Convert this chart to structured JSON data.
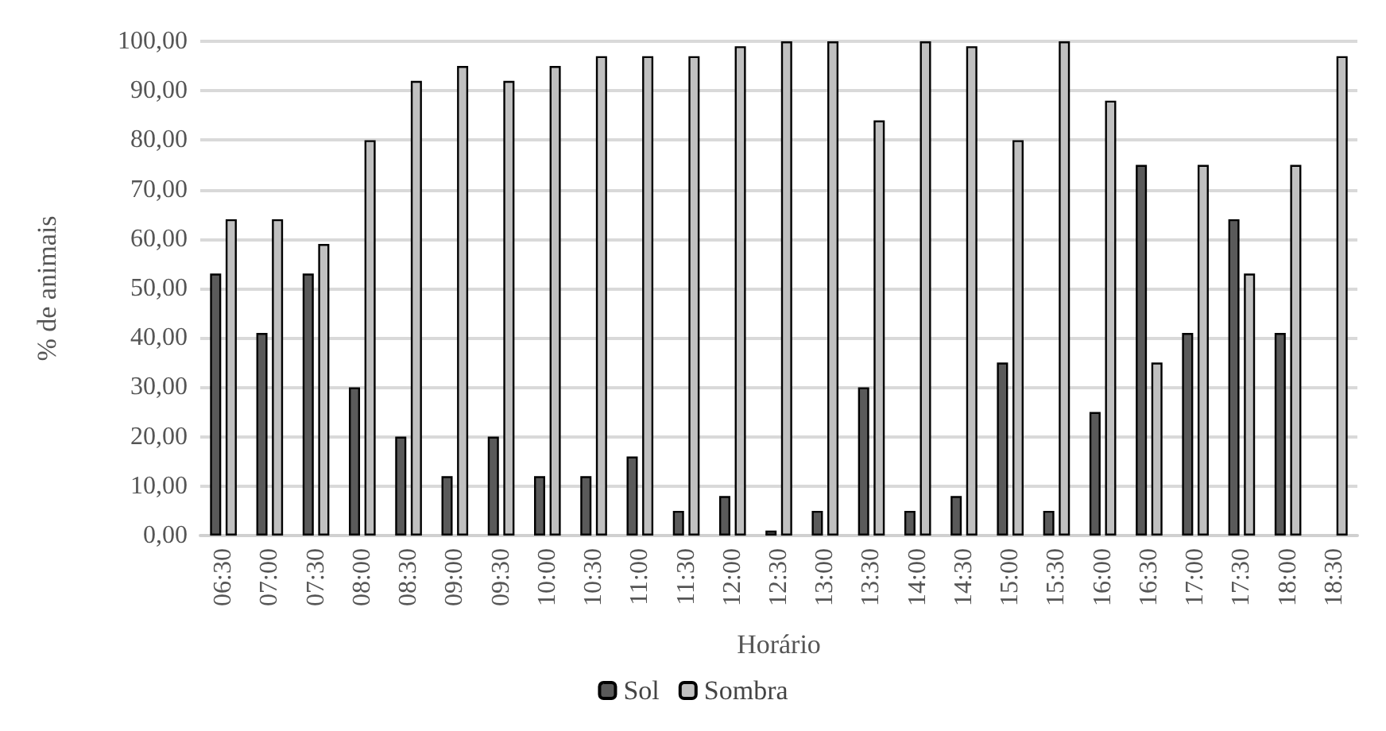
{
  "chart_data": {
    "type": "bar",
    "xlabel": "Horário",
    "ylabel": "% de animais",
    "categories": [
      "06:30",
      "07:00",
      "07:30",
      "08:00",
      "08:30",
      "09:00",
      "09:30",
      "10:00",
      "10:30",
      "11:00",
      "11:30",
      "12:00",
      "12:30",
      "13:00",
      "13:30",
      "14:00",
      "14:30",
      "15:00",
      "15:30",
      "16:00",
      "16:30",
      "17:00",
      "17:30",
      "18:00",
      "18:30"
    ],
    "series": [
      {
        "name": "Sol",
        "color": "#5a5a5a",
        "values": [
          53,
          41,
          53,
          30,
          20,
          12,
          20,
          12,
          12,
          16,
          5,
          8,
          1,
          5,
          30,
          5,
          8,
          35,
          5,
          25,
          75,
          41,
          64,
          41,
          null
        ]
      },
      {
        "name": "Sombra",
        "color": "#c0c0c0",
        "values": [
          64,
          64,
          59,
          80,
          92,
          95,
          92,
          95,
          97,
          97,
          97,
          99,
          100,
          100,
          84,
          100,
          99,
          80,
          100,
          88,
          35,
          75,
          53,
          75,
          97
        ]
      }
    ],
    "ylim": [
      0,
      100
    ],
    "yticks": [
      {
        "value": 0,
        "label": "0,00"
      },
      {
        "value": 10,
        "label": "10,00"
      },
      {
        "value": 20,
        "label": "20,00"
      },
      {
        "value": 30,
        "label": "30,00"
      },
      {
        "value": 40,
        "label": "40,00"
      },
      {
        "value": 50,
        "label": "50,00"
      },
      {
        "value": 60,
        "label": "60,00"
      },
      {
        "value": 70,
        "label": "70,00"
      },
      {
        "value": 80,
        "label": "80,00"
      },
      {
        "value": 90,
        "label": "90,00"
      },
      {
        "value": 100,
        "label": "100,00"
      }
    ],
    "grid": "y",
    "legend": "bottom"
  }
}
